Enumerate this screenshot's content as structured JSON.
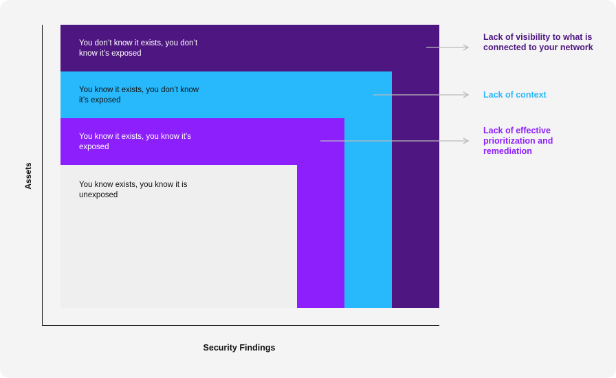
{
  "axes": {
    "y_label": "Assets",
    "x_label": "Security Findings"
  },
  "layers": [
    {
      "text": "You don’t know it exists, you don’t know it’s exposed",
      "color": "#4e1680"
    },
    {
      "text": "You know it exists, you don’t know it’s exposed",
      "color": "#27b9fb"
    },
    {
      "text": "You know it exists, you know it’s exposed",
      "color": "#8c1ffc"
    },
    {
      "text": "You know exists, you know it is unexposed",
      "color": "#efefef"
    }
  ],
  "callouts": [
    {
      "text": "Lack of visibility to what is connected to your network",
      "color": "#4e1680"
    },
    {
      "text": "Lack of context",
      "color": "#27b9fb"
    },
    {
      "text": "Lack of effective prioritization and remediation",
      "color": "#8c1ffc"
    }
  ],
  "arrow_color": "#bbbbbb"
}
